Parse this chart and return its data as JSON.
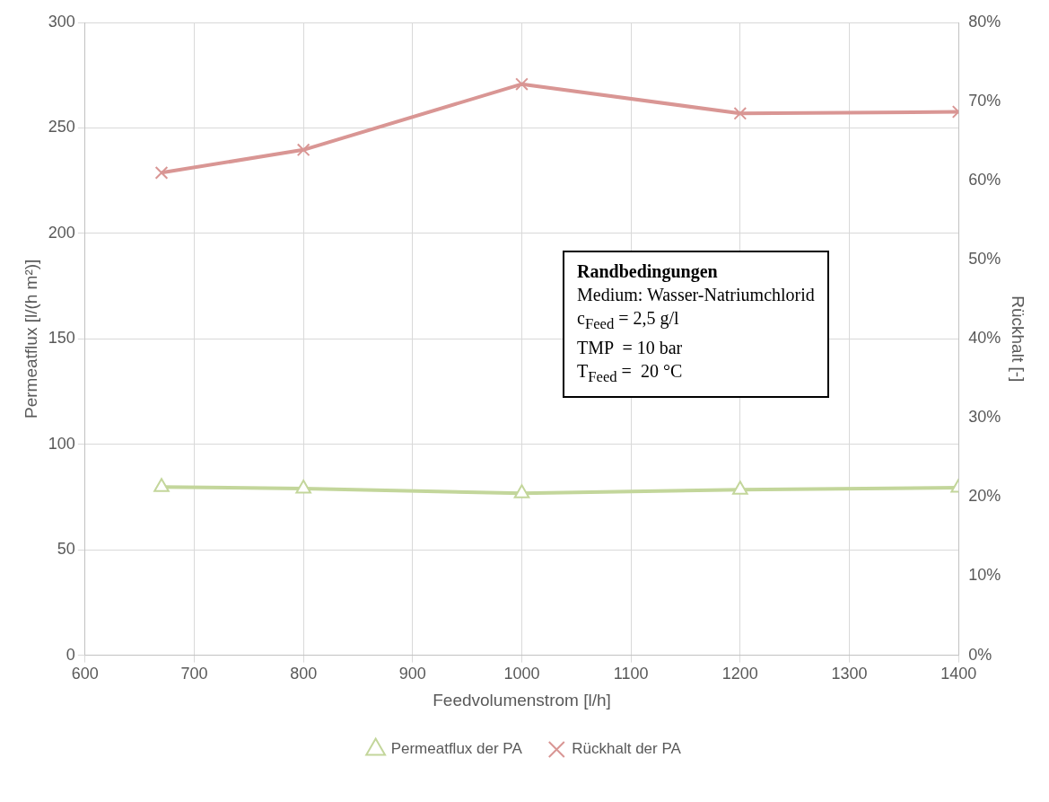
{
  "chart_data": {
    "type": "line",
    "xlabel": "Feedvolumenstrom [l/h]",
    "ylabel": "Permeatflux [l/(h m²)]",
    "y2label": "Rückhalt [-]",
    "x": [
      670,
      800,
      1000,
      1200,
      1400
    ],
    "series": [
      {
        "name": "Permeatflux der PA",
        "color": "#c3d69b",
        "marker": "triangle",
        "values": [
          79.8,
          79,
          76.8,
          78.5,
          79.4
        ]
      },
      {
        "name": "Rückhalt der PA",
        "color": "#d99694",
        "marker": "cross",
        "axis": "y2",
        "values": [
          61,
          63.9,
          72.2,
          68.5,
          68.7
        ]
      }
    ],
    "xlim": [
      600,
      1400
    ],
    "xticks": [
      600,
      700,
      800,
      900,
      1000,
      1100,
      1200,
      1300,
      1400
    ],
    "ylim": [
      0,
      300
    ],
    "yticks": [
      0,
      50,
      100,
      150,
      200,
      250,
      300
    ],
    "y2lim": [
      0,
      80
    ],
    "y2ticks": [
      {
        "value": 0,
        "label": "0%"
      },
      {
        "value": 10,
        "label": "10%"
      },
      {
        "value": 20,
        "label": "20%"
      },
      {
        "value": 30,
        "label": "30%"
      },
      {
        "value": 40,
        "label": "40%"
      },
      {
        "value": 50,
        "label": "50%"
      },
      {
        "value": 60,
        "label": "60%"
      },
      {
        "value": 70,
        "label": "70%"
      },
      {
        "value": 80,
        "label": "80%"
      }
    ],
    "annotations": [
      "Randbedingungen",
      "Medium: Wasser-Natriumchlorid",
      "c$_{Feed}$ = 2,5 g/l",
      "TMP  = 10 bar",
      "T$_{Feed}$ =  20 °C"
    ],
    "grid": true,
    "legend": "bottom",
    "line_style": "solid"
  }
}
